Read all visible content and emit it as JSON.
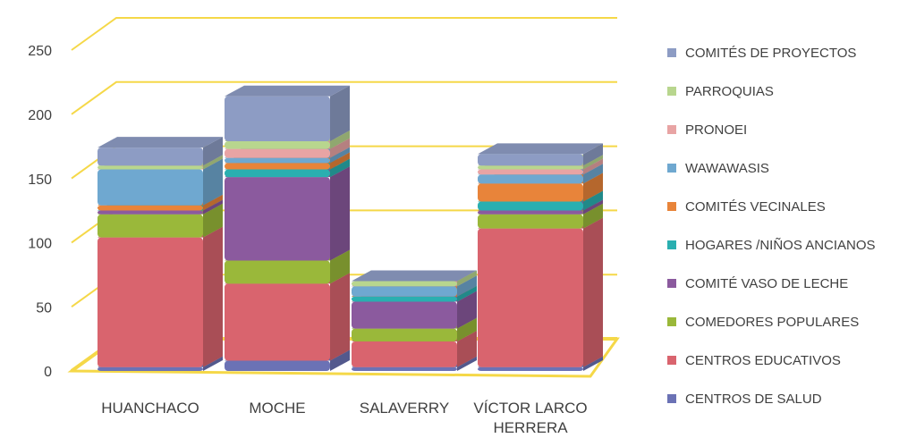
{
  "chart_data": {
    "type": "bar3d_stacked",
    "categories": [
      "HUANCHACO",
      "MOCHE",
      "SALAVERRY",
      "VÍCTOR LARCO HERRERA"
    ],
    "series": [
      {
        "name": "CENTROS DE SALUD",
        "color": "#6b72b5",
        "values": [
          3,
          8,
          3,
          3
        ]
      },
      {
        "name": "CENTROS EDUCATIVOS",
        "color": "#d9646e",
        "values": [
          101,
          60,
          20,
          108
        ]
      },
      {
        "name": "COMEDORES POPULARES",
        "color": "#9ab83a",
        "values": [
          18,
          18,
          10,
          11
        ]
      },
      {
        "name": "COMITÉ VASO DE LECHE",
        "color": "#8b5a9e",
        "values": [
          3,
          65,
          21,
          3
        ]
      },
      {
        "name": "HOGARES /NIÑOS ANCIANOS",
        "color": "#2aafb0",
        "values": [
          0,
          6,
          4,
          7
        ]
      },
      {
        "name": "COMITÉS VECINALES",
        "color": "#e8843a",
        "values": [
          4,
          5,
          0,
          14
        ]
      },
      {
        "name": "WAWAWASIS",
        "color": "#6fa8d0",
        "values": [
          28,
          4,
          8,
          7
        ]
      },
      {
        "name": "PRONOEI",
        "color": "#e8a4a4",
        "values": [
          0,
          7,
          0,
          4
        ]
      },
      {
        "name": "PARROQUIAS",
        "color": "#b8d68e",
        "values": [
          3,
          6,
          4,
          3
        ]
      },
      {
        "name": "COMITÉS DE PROYECTOS",
        "color": "#8d9cc4",
        "values": [
          14,
          35,
          0,
          9
        ]
      }
    ],
    "ylim": [
      0,
      250
    ],
    "yticks": [
      0,
      50,
      100,
      150,
      200,
      250
    ],
    "grid": true,
    "grid_color": "#f5d848",
    "legend": "right"
  }
}
